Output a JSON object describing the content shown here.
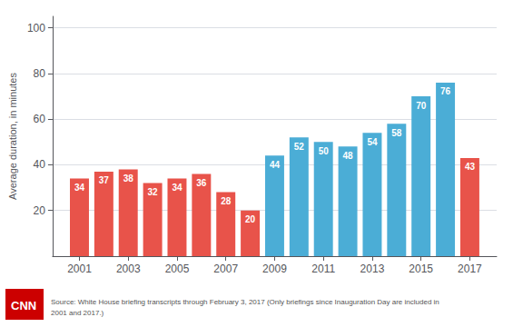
{
  "chart_data": {
    "type": "bar",
    "x": [
      2001,
      2002,
      2003,
      2004,
      2005,
      2006,
      2007,
      2008,
      2009,
      2010,
      2011,
      2012,
      2013,
      2014,
      2015,
      2016,
      2017
    ],
    "values": [
      34,
      37,
      38,
      32,
      34,
      36,
      28,
      20,
      44,
      52,
      50,
      48,
      54,
      58,
      70,
      76,
      43
    ],
    "colors": [
      "#e8534a",
      "#e8534a",
      "#e8534a",
      "#e8534a",
      "#e8534a",
      "#e8534a",
      "#e8534a",
      "#e8534a",
      "#4badd6",
      "#4badd6",
      "#4badd6",
      "#4badd6",
      "#4badd6",
      "#4badd6",
      "#4badd6",
      "#4badd6",
      "#e8534a"
    ],
    "ylabel": "Average duration, in minutes",
    "ylim": [
      0,
      105
    ],
    "yticks": [
      20,
      40,
      60,
      80,
      100
    ],
    "xlim": [
      1999.9,
      2018.1
    ],
    "xticks": [
      2001,
      2003,
      2005,
      2007,
      2009,
      2011,
      2013,
      2015,
      2017
    ],
    "grid": true,
    "data_labels": true,
    "annotations": [
      {
        "text": "CNN",
        "color": "#cc0000"
      },
      {
        "text": "Source: White House briefing transcripts through February 3, 2017 (Only briefings since Inauguration Day are included in\n2001 and 2017.)"
      }
    ]
  }
}
